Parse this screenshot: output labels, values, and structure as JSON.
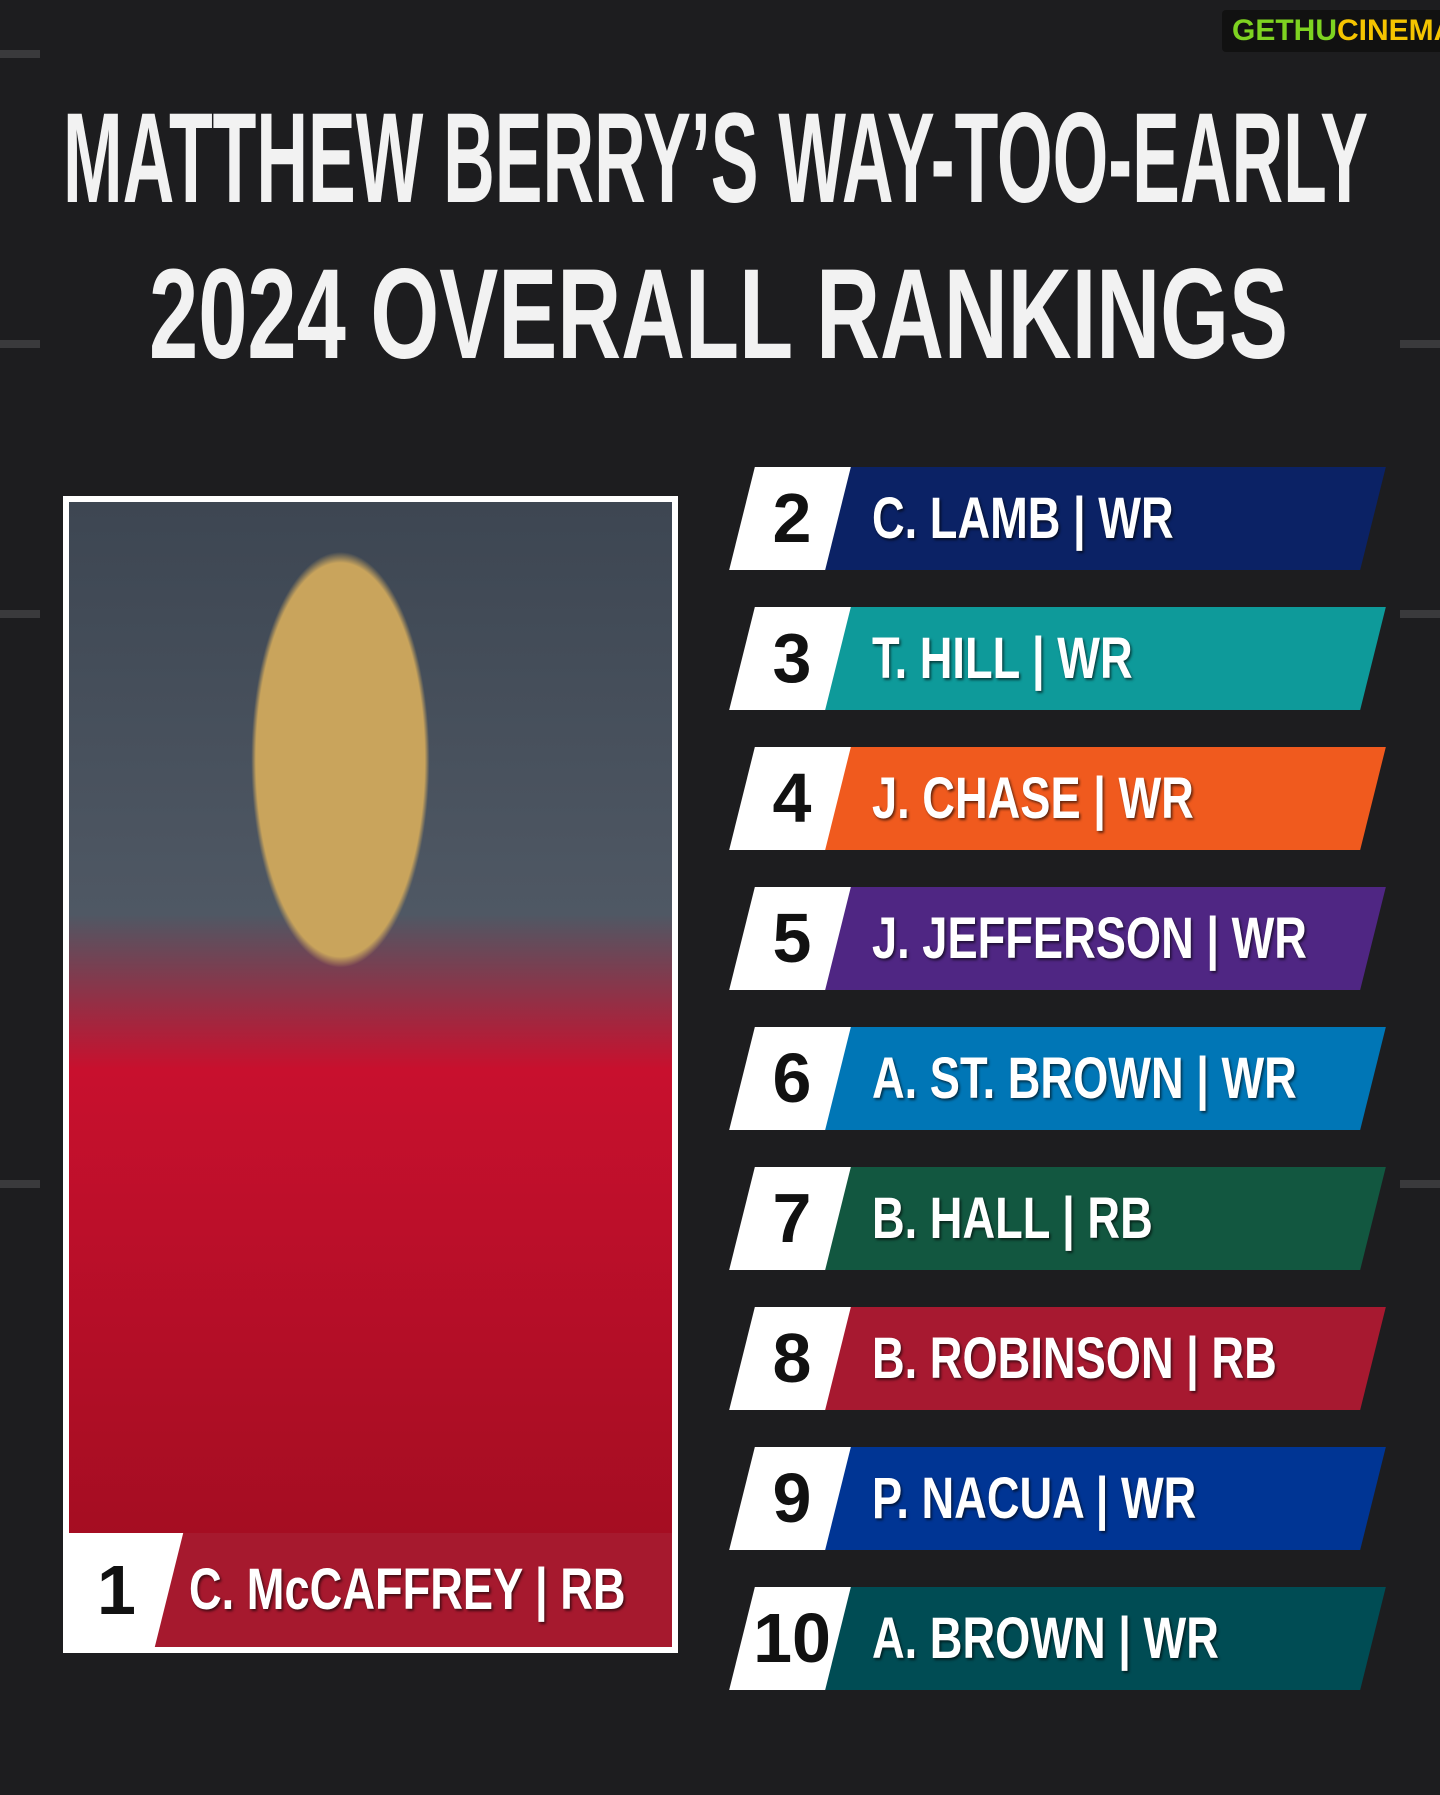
{
  "watermark": [
    "GETHU",
    "CINEMA"
  ],
  "title": [
    "MATTHEW BERRY’S WAY-TOO-EARLY",
    "2024 OVERALL RANKINGS"
  ],
  "featured": {
    "rank": 1,
    "label": "C. McCAFFREY | RB",
    "color": "#a6192e"
  },
  "rankings": [
    {
      "rank": 2,
      "label": "C. LAMB | WR",
      "color": "#0b2265"
    },
    {
      "rank": 3,
      "label": "T. HILL | WR",
      "color": "#0e9a9a"
    },
    {
      "rank": 4,
      "label": "J. CHASE | WR",
      "color": "#f05a1e"
    },
    {
      "rank": 5,
      "label": "J. JEFFERSON | WR",
      "color": "#4f2683"
    },
    {
      "rank": 6,
      "label": "A. ST. BROWN | WR",
      "color": "#0076b6"
    },
    {
      "rank": 7,
      "label": "B. HALL | RB",
      "color": "#125740"
    },
    {
      "rank": 8,
      "label": "B. ROBINSON | RB",
      "color": "#a71930"
    },
    {
      "rank": 9,
      "label": "P. NACUA | WR",
      "color": "#003594"
    },
    {
      "rank": 10,
      "label": "A. BROWN | WR",
      "color": "#004c54"
    }
  ]
}
